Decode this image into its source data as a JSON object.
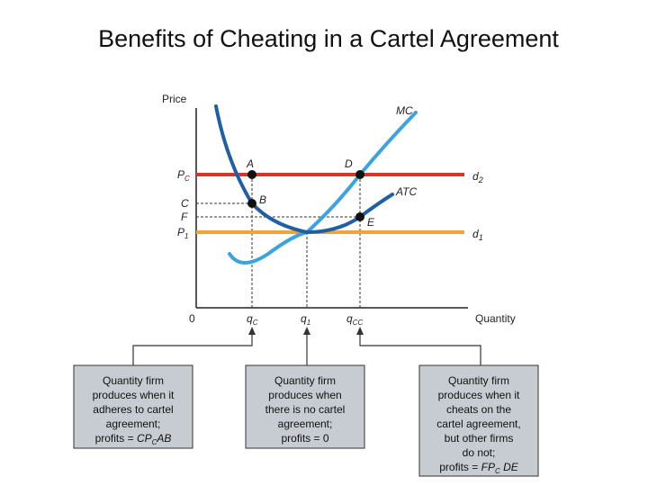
{
  "title": "Benefits of Cheating in a Cartel Agreement",
  "axes": {
    "y_label": "Price",
    "x_label": "Quantity",
    "origin": "0"
  },
  "price_labels": {
    "pc": "P",
    "pc_sub": "C",
    "c": "C",
    "f": "F",
    "p1": "P",
    "p1_sub": "1"
  },
  "quantity_labels": {
    "qc": "q",
    "qc_sub": "C",
    "q1": "q",
    "q1_sub": "1",
    "qcc": "q",
    "qcc_sub": "CC"
  },
  "curves": {
    "mc": "MC",
    "atc": "ATC",
    "d2": "d",
    "d2_sub": "2",
    "d1": "d",
    "d1_sub": "1"
  },
  "points": {
    "a": "A",
    "b": "B",
    "d": "D",
    "e": "E"
  },
  "colors": {
    "red_line": "#d9342b",
    "orange_line": "#f0a33a",
    "mc_curve": "#3aa3e0",
    "atc_curve": "#1e5fa5",
    "box_fill": "#c6ccd2"
  },
  "callouts": [
    {
      "lines": [
        "Quantity firm",
        "produces when it",
        "adheres to cartel",
        "agreement;"
      ],
      "profit_prefix": "profits = ",
      "profit_value": "CP",
      "profit_sub": "C",
      "profit_suffix": "AB"
    },
    {
      "lines": [
        "Quantity firm",
        "produces when",
        "there is no cartel",
        "agreement;"
      ],
      "profit_prefix": "profits = ",
      "profit_value": "0",
      "profit_sub": "",
      "profit_suffix": ""
    },
    {
      "lines": [
        "Quantity firm",
        "produces when it",
        "cheats on the",
        "cartel agreement,",
        "but other firms",
        "do not;"
      ],
      "profit_prefix": "profits = ",
      "profit_value": "FP",
      "profit_sub": "C",
      "profit_suffix": " DE"
    }
  ]
}
